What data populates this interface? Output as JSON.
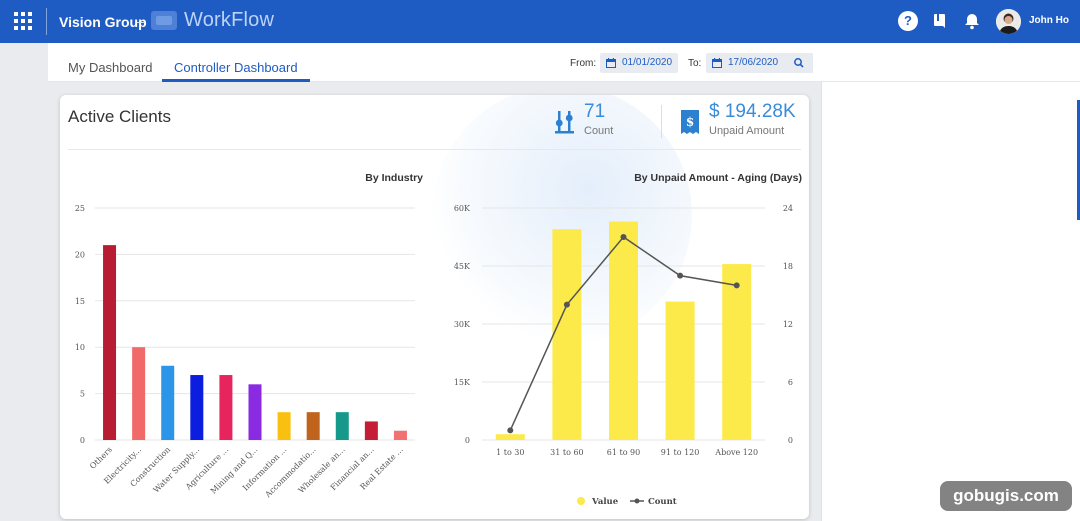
{
  "header": {
    "company": "Vision Group",
    "separator": "–",
    "product": "WorkFlow",
    "user_name": "John Ho",
    "help_glyph": "?",
    "icons": [
      "apps-grid-icon",
      "help-icon",
      "book-icon",
      "bell-icon"
    ]
  },
  "nav": {
    "tabs": [
      {
        "label": "My Dashboard",
        "active": false
      },
      {
        "label": "Controller Dashboard",
        "active": true
      }
    ],
    "from_label": "From:",
    "from_date": "01/01/2020",
    "to_label": "To:",
    "to_date": "17/06/2020"
  },
  "card": {
    "title": "Active Clients",
    "count_value": "71",
    "count_label": "Count",
    "unpaid_value": "$ 194.28K",
    "unpaid_label": "Unpaid Amount"
  },
  "chart_data": [
    {
      "type": "bar",
      "title": "By Industry",
      "categories": [
        "Others",
        "Electricity...",
        "Construction",
        "Water Supply...",
        "Agriculture ...",
        "Mining and Q...",
        "Information ...",
        "Accommodatio...",
        "Wholesale an...",
        "Financial an...",
        "Real Estate ..."
      ],
      "values": [
        21,
        10,
        8,
        7,
        7,
        6,
        3,
        3,
        3,
        2,
        1
      ],
      "colors": [
        "#b81c32",
        "#f06a6a",
        "#2c95e8",
        "#0b1ee0",
        "#e8245f",
        "#8a2be2",
        "#f9c012",
        "#c0631c",
        "#16998a",
        "#c41d35",
        "#f07272"
      ],
      "ylim": [
        0,
        25
      ],
      "yticks": [
        "0",
        "5",
        "10",
        "15",
        "20",
        "25"
      ],
      "grid": true
    },
    {
      "type": "bar",
      "title": "By Unpaid Amount - Aging (Days)",
      "categories": [
        "1 to 30",
        "31 to 60",
        "61 to 90",
        "91 to 120",
        "Above 120"
      ],
      "series": [
        {
          "name": "Value",
          "type": "bar",
          "axis": "left",
          "color": "#fce94a",
          "values": [
            1500,
            54500,
            56500,
            35800,
            45500
          ]
        },
        {
          "name": "Count",
          "type": "line",
          "axis": "right",
          "color": "#555555",
          "values": [
            1,
            14,
            21,
            17,
            16
          ]
        }
      ],
      "ylim": [
        0,
        60000
      ],
      "yticks": [
        "0",
        "15K",
        "30K",
        "45K",
        "60K"
      ],
      "y2lim": [
        0,
        24
      ],
      "y2ticks": [
        "0",
        "6",
        "12",
        "18",
        "24"
      ],
      "legend": "bottom",
      "grid": true
    }
  ],
  "watermark": "gobugis.com"
}
